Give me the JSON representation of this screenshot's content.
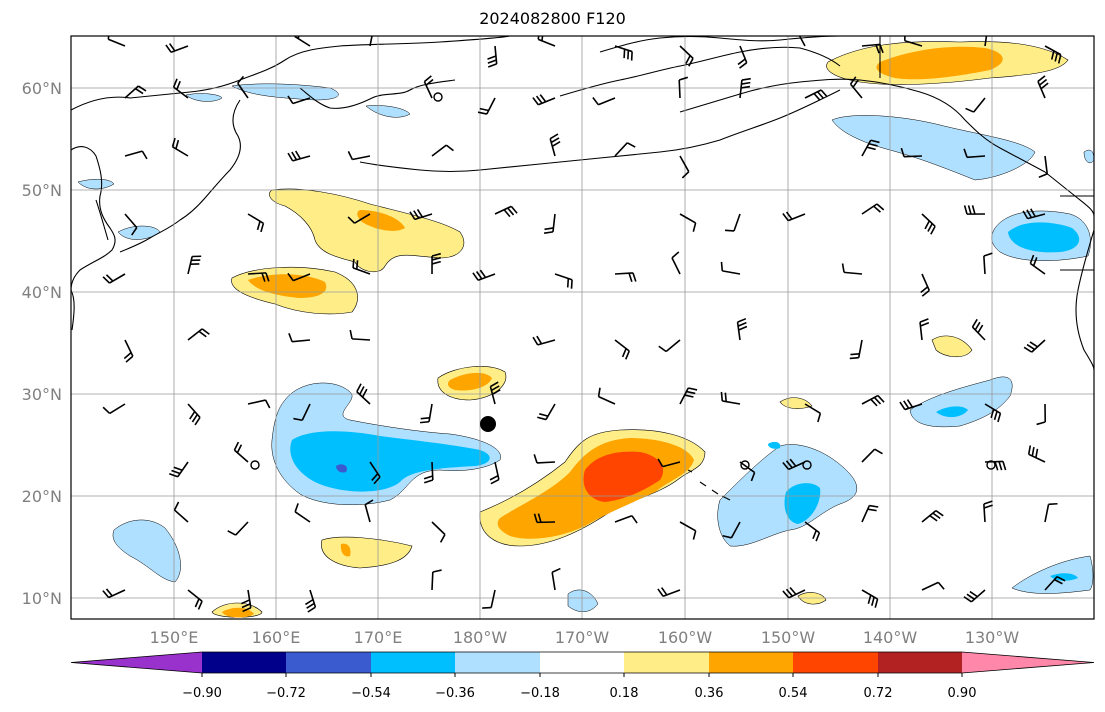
{
  "title": "2024082800 F120",
  "map": {
    "lat_labels": [
      "60°N",
      "50°N",
      "40°N",
      "30°N",
      "20°N",
      "10°N"
    ],
    "lon_labels": [
      "150°E",
      "160°E",
      "170°E",
      "180°W",
      "170°W",
      "160°W",
      "150°W",
      "140°W",
      "130°W"
    ],
    "grid_color": "#999999"
  },
  "colorbar": {
    "tick_labels": [
      "−0.90",
      "−0.72",
      "−0.54",
      "−0.36",
      "−0.18",
      "0.18",
      "0.36",
      "0.54",
      "0.72",
      "0.90"
    ],
    "colors": [
      "#9932CC",
      "#00008B",
      "#3A5BD0",
      "#00BFFF",
      "#B0E0FF",
      "#FFFFFF",
      "#FFEE88",
      "#FFA500",
      "#FF4500",
      "#B22222",
      "#FF88AA"
    ]
  },
  "fill_colors": {
    "light_blue": "#B0E0FF",
    "blue": "#00BFFF",
    "mid_blue": "#3A5BD0",
    "light_yellow": "#FFEE88",
    "orange": "#FFA500",
    "red_orange": "#FF4500"
  }
}
